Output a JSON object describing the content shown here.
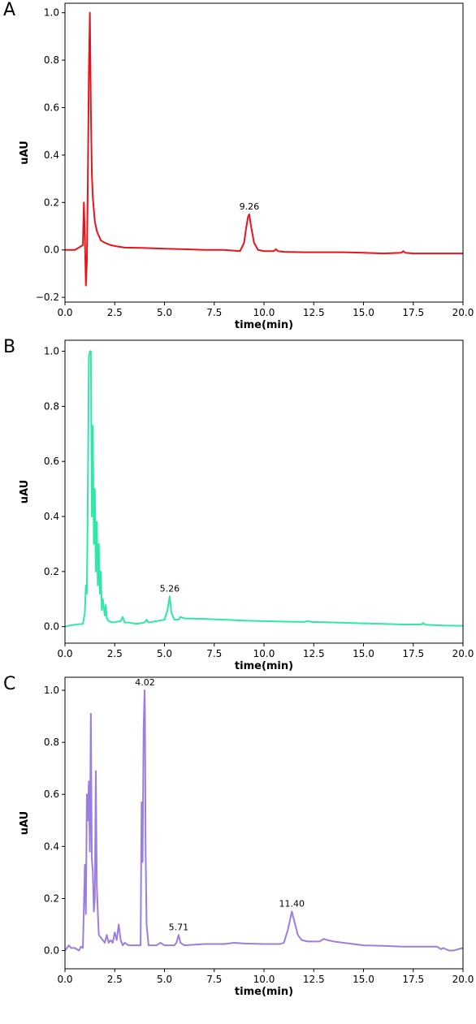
{
  "chart_data": [
    {
      "panel": "A",
      "type": "line",
      "color": "#e8141b",
      "xlabel": "time(min)",
      "ylabel": "uAU",
      "xlim": [
        0,
        20
      ],
      "ylim": [
        -0.22,
        1.04
      ],
      "xticks": [
        0.0,
        2.5,
        5.0,
        7.5,
        10.0,
        12.5,
        15.0,
        17.5,
        20.0
      ],
      "yticks": [
        -0.2,
        0.0,
        0.2,
        0.4,
        0.6,
        0.8,
        1.0
      ],
      "annotations": [
        {
          "x": 9.26,
          "y": 0.15,
          "text": "9.26"
        }
      ],
      "x": [
        0.0,
        0.5,
        0.9,
        0.95,
        1.0,
        1.05,
        1.1,
        1.15,
        1.2,
        1.25,
        1.3,
        1.35,
        1.4,
        1.5,
        1.6,
        1.7,
        1.8,
        2.0,
        2.3,
        2.6,
        3.0,
        4.0,
        5.0,
        6.0,
        7.0,
        8.0,
        8.8,
        9.0,
        9.1,
        9.2,
        9.26,
        9.35,
        9.5,
        9.7,
        10.0,
        10.5,
        10.6,
        10.7,
        11.0,
        12.0,
        13.0,
        14.0,
        15.0,
        16.0,
        16.9,
        17.0,
        17.1,
        17.5,
        18.0,
        19.0,
        20.0
      ],
      "y": [
        0.0,
        0.0,
        0.02,
        0.2,
        0.05,
        -0.15,
        -0.05,
        0.3,
        0.75,
        1.0,
        0.6,
        0.32,
        0.22,
        0.12,
        0.08,
        0.06,
        0.04,
        0.03,
        0.02,
        0.015,
        0.01,
        0.008,
        0.005,
        0.003,
        0.0,
        0.0,
        -0.005,
        0.03,
        0.09,
        0.14,
        0.15,
        0.1,
        0.03,
        0.0,
        -0.005,
        -0.005,
        0.003,
        -0.005,
        -0.008,
        -0.01,
        -0.01,
        -0.01,
        -0.012,
        -0.015,
        -0.012,
        -0.005,
        -0.012,
        -0.015,
        -0.015,
        -0.015,
        -0.015
      ]
    },
    {
      "panel": "B",
      "type": "line",
      "color": "#2de8a6",
      "xlabel": "time(min)",
      "ylabel": "uAU",
      "xlim": [
        0,
        20
      ],
      "ylim": [
        -0.06,
        1.04
      ],
      "xticks": [
        0.0,
        2.5,
        5.0,
        7.5,
        10.0,
        12.5,
        15.0,
        17.5,
        20.0
      ],
      "yticks": [
        0.0,
        0.2,
        0.4,
        0.6,
        0.8,
        1.0
      ],
      "annotations": [
        {
          "x": 5.26,
          "y": 0.11,
          "text": "5.26"
        }
      ],
      "x": [
        0.0,
        0.3,
        0.6,
        0.9,
        1.0,
        1.05,
        1.1,
        1.15,
        1.2,
        1.25,
        1.3,
        1.35,
        1.4,
        1.45,
        1.5,
        1.55,
        1.6,
        1.65,
        1.7,
        1.75,
        1.8,
        1.85,
        1.9,
        2.0,
        2.05,
        2.1,
        2.2,
        2.4,
        2.8,
        2.9,
        3.0,
        3.2,
        3.6,
        4.0,
        4.1,
        4.2,
        4.6,
        5.0,
        5.15,
        5.26,
        5.35,
        5.5,
        5.7,
        5.8,
        6.0,
        7.0,
        8.0,
        9.0,
        10.0,
        11.0,
        12.0,
        12.2,
        12.4,
        13.0,
        14.0,
        15.0,
        16.0,
        17.0,
        17.9,
        18.0,
        18.1,
        19.0,
        20.0
      ],
      "y": [
        0.0,
        0.005,
        0.008,
        0.01,
        0.05,
        0.15,
        0.12,
        0.5,
        0.98,
        1.0,
        1.0,
        0.4,
        0.73,
        0.3,
        0.5,
        0.2,
        0.38,
        0.15,
        0.3,
        0.12,
        0.2,
        0.06,
        0.1,
        0.04,
        0.08,
        0.03,
        0.02,
        0.015,
        0.02,
        0.035,
        0.015,
        0.015,
        0.01,
        0.015,
        0.025,
        0.015,
        0.02,
        0.025,
        0.06,
        0.11,
        0.05,
        0.025,
        0.025,
        0.035,
        0.03,
        0.028,
        0.025,
        0.022,
        0.02,
        0.018,
        0.017,
        0.02,
        0.017,
        0.016,
        0.014,
        0.012,
        0.01,
        0.008,
        0.008,
        0.013,
        0.007,
        0.004,
        0.003
      ]
    },
    {
      "panel": "C",
      "type": "line",
      "color": "#9b7ee0",
      "xlabel": "time(min)",
      "ylabel": "uAU",
      "xlim": [
        0,
        20
      ],
      "ylim": [
        -0.07,
        1.05
      ],
      "xticks": [
        0.0,
        2.5,
        5.0,
        7.5,
        10.0,
        12.5,
        15.0,
        17.5,
        20.0
      ],
      "yticks": [
        0.0,
        0.2,
        0.4,
        0.6,
        0.8,
        1.0
      ],
      "annotations": [
        {
          "x": 4.02,
          "y": 1.0,
          "text": "4.02"
        },
        {
          "x": 5.71,
          "y": 0.06,
          "text": "5.71"
        },
        {
          "x": 11.4,
          "y": 0.15,
          "text": "11.40"
        }
      ],
      "x": [
        0.0,
        0.2,
        0.3,
        0.5,
        0.7,
        0.8,
        0.9,
        1.0,
        1.05,
        1.1,
        1.15,
        1.2,
        1.25,
        1.3,
        1.35,
        1.4,
        1.45,
        1.5,
        1.55,
        1.6,
        1.65,
        1.7,
        1.8,
        2.0,
        2.1,
        2.2,
        2.3,
        2.4,
        2.5,
        2.6,
        2.7,
        2.8,
        2.9,
        3.0,
        3.2,
        3.4,
        3.6,
        3.8,
        3.85,
        3.9,
        3.95,
        4.0,
        4.02,
        4.05,
        4.1,
        4.2,
        4.4,
        4.6,
        4.8,
        5.0,
        5.2,
        5.5,
        5.6,
        5.71,
        5.8,
        6.0,
        7.0,
        8.0,
        8.5,
        9.0,
        10.0,
        10.8,
        11.0,
        11.2,
        11.4,
        11.5,
        11.7,
        11.9,
        12.2,
        12.5,
        12.8,
        13.0,
        13.2,
        13.5,
        14.0,
        15.0,
        16.0,
        17.0,
        18.0,
        18.7,
        18.8,
        18.9,
        19.0,
        19.3,
        19.5,
        20.0
      ],
      "y": [
        0.0,
        0.02,
        0.01,
        0.01,
        0.0,
        0.015,
        0.01,
        0.33,
        0.14,
        0.6,
        0.5,
        0.65,
        0.38,
        0.91,
        0.35,
        0.3,
        0.15,
        0.2,
        0.69,
        0.25,
        0.15,
        0.06,
        0.05,
        0.03,
        0.06,
        0.03,
        0.04,
        0.03,
        0.07,
        0.04,
        0.1,
        0.04,
        0.02,
        0.03,
        0.02,
        0.02,
        0.02,
        0.02,
        0.57,
        0.34,
        0.85,
        1.0,
        0.9,
        0.4,
        0.1,
        0.02,
        0.02,
        0.02,
        0.03,
        0.02,
        0.02,
        0.02,
        0.03,
        0.06,
        0.03,
        0.02,
        0.025,
        0.025,
        0.03,
        0.027,
        0.025,
        0.025,
        0.03,
        0.08,
        0.15,
        0.12,
        0.06,
        0.04,
        0.035,
        0.035,
        0.035,
        0.045,
        0.04,
        0.035,
        0.03,
        0.02,
        0.018,
        0.015,
        0.015,
        0.015,
        0.01,
        0.005,
        0.01,
        0.0,
        0.0,
        0.01
      ]
    }
  ]
}
